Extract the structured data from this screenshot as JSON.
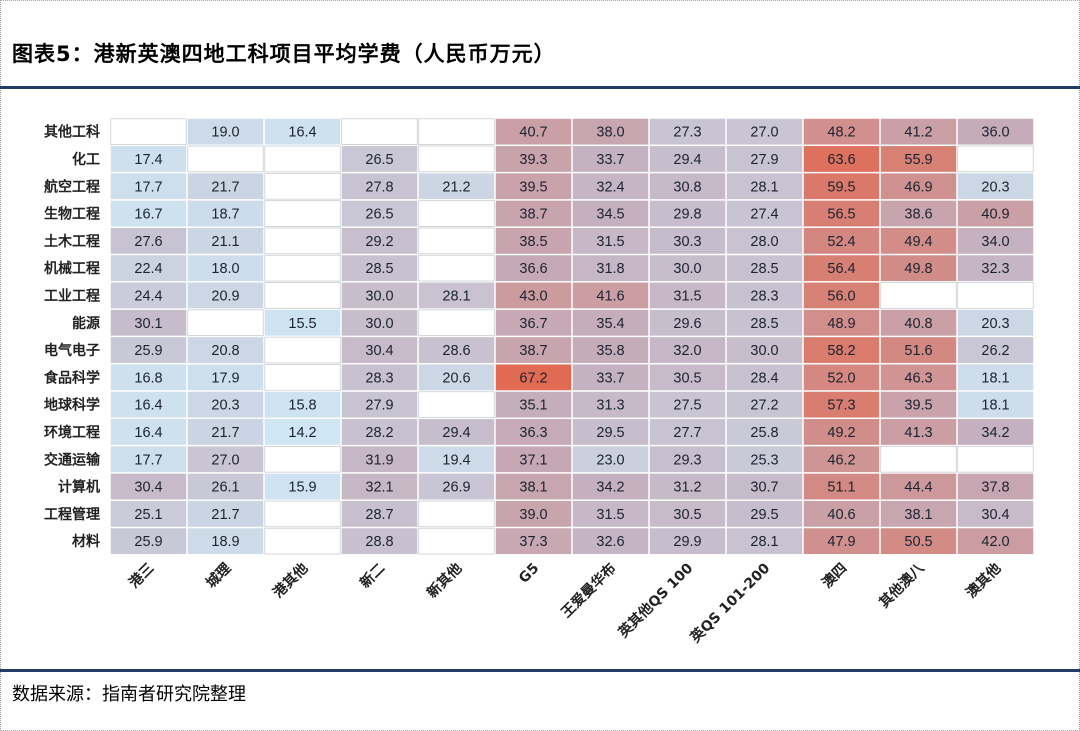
{
  "header": {
    "title": "图表5：港新英澳四地工科项目平均学费（人民币万元）"
  },
  "footer": {
    "source": "数据来源：指南者研究院整理"
  },
  "chart_data": {
    "type": "heatmap",
    "title": "图表5：港新英澳四地工科项目平均学费（人民币万元）",
    "unit": "人民币万元",
    "rows": [
      "其他工科",
      "化工",
      "航空工程",
      "生物工程",
      "土木工程",
      "机械工程",
      "工业工程",
      "能源",
      "电气电子",
      "食品科学",
      "地球科学",
      "环境工程",
      "交通运输",
      "计算机",
      "工程管理",
      "材料"
    ],
    "columns": [
      "港三",
      "城理",
      "港其他",
      "新二",
      "新其他",
      "G5",
      "王爱曼华布",
      "英其他QS 100",
      "英QS 101-200",
      "澳四",
      "其他澳八",
      "澳其他"
    ],
    "values": [
      [
        null,
        19.0,
        16.4,
        null,
        null,
        40.7,
        38.0,
        27.3,
        27.0,
        48.2,
        41.2,
        36.0
      ],
      [
        17.4,
        null,
        null,
        26.5,
        null,
        39.3,
        33.7,
        29.4,
        27.9,
        63.6,
        55.9,
        null
      ],
      [
        17.7,
        21.7,
        null,
        27.8,
        21.2,
        39.5,
        32.4,
        30.8,
        28.1,
        59.5,
        46.9,
        20.3
      ],
      [
        16.7,
        18.7,
        null,
        26.5,
        null,
        38.7,
        34.5,
        29.8,
        27.4,
        56.5,
        38.6,
        40.9
      ],
      [
        27.6,
        21.1,
        null,
        29.2,
        null,
        38.5,
        31.5,
        30.3,
        28.0,
        52.4,
        49.4,
        34.0
      ],
      [
        22.4,
        18.0,
        null,
        28.5,
        null,
        36.6,
        31.8,
        30.0,
        28.5,
        56.4,
        49.8,
        32.3
      ],
      [
        24.4,
        20.9,
        null,
        30.0,
        28.1,
        43.0,
        41.6,
        31.5,
        28.3,
        56.0,
        null,
        null
      ],
      [
        30.1,
        null,
        15.5,
        30.0,
        null,
        36.7,
        35.4,
        29.6,
        28.5,
        48.9,
        40.8,
        20.3
      ],
      [
        25.9,
        20.8,
        null,
        30.4,
        28.6,
        38.7,
        35.8,
        32.0,
        30.0,
        58.2,
        51.6,
        26.2
      ],
      [
        16.8,
        17.9,
        null,
        28.3,
        20.6,
        67.2,
        33.7,
        30.5,
        28.4,
        52.0,
        46.3,
        18.1
      ],
      [
        16.4,
        20.3,
        15.8,
        27.9,
        null,
        35.1,
        31.3,
        27.5,
        27.2,
        57.3,
        39.5,
        18.1
      ],
      [
        16.4,
        21.7,
        14.2,
        28.2,
        29.4,
        36.3,
        29.5,
        27.7,
        25.8,
        49.2,
        41.3,
        34.2
      ],
      [
        17.7,
        27.0,
        null,
        31.9,
        19.4,
        37.1,
        23.0,
        29.3,
        25.3,
        46.2,
        null,
        null
      ],
      [
        30.4,
        26.1,
        15.9,
        32.1,
        26.9,
        38.1,
        34.2,
        31.2,
        30.7,
        51.1,
        44.4,
        37.8
      ],
      [
        25.1,
        21.7,
        null,
        28.7,
        null,
        39.0,
        31.5,
        30.5,
        29.5,
        40.6,
        38.1,
        30.4
      ],
      [
        25.9,
        18.9,
        null,
        28.8,
        null,
        37.3,
        32.6,
        29.9,
        28.1,
        47.9,
        50.5,
        42.0
      ]
    ],
    "color_scale": {
      "low": "#cfe6f4",
      "mid": "#c4aebd",
      "high": "#e06a52",
      "min": 14.2,
      "max": 67.2
    },
    "empty_color": "#ffffff"
  }
}
